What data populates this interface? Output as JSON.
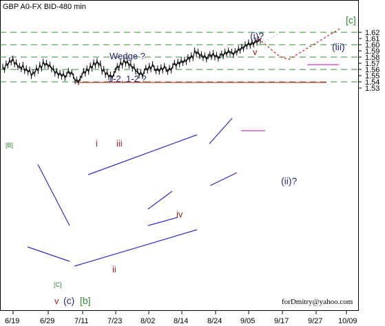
{
  "chart_data": {
    "type": "line",
    "title": "GBP A0-FX BID-480 min",
    "instrument": "GBP A0-FX",
    "timeframe": "480 min",
    "price_source": "BID",
    "x_tick_labels": [
      "6/19",
      "6/29",
      "7/11",
      "7/23",
      "8/02",
      "8/14",
      "8/24",
      "9/05",
      "9/17",
      "9/27",
      "10/09"
    ],
    "y_tick_labels": [
      "1.53",
      "1.54",
      "1.55",
      "1.56",
      "1.57",
      "1.58",
      "1.59",
      "1.60",
      "1.61",
      "1.62"
    ],
    "ylim": [
      1.53,
      1.627
    ],
    "y_axis_position": "right",
    "grid": false,
    "horizontal_levels": [
      1.54,
      1.56,
      1.58,
      1.6,
      1.62
    ],
    "support_line": 1.539,
    "series": [
      {
        "values": [
          1.565,
          1.559,
          1.57,
          1.566,
          1.575,
          1.571,
          1.578,
          1.568,
          1.572,
          1.563,
          1.566,
          1.56,
          1.568,
          1.557,
          1.562,
          1.555,
          1.56,
          1.549,
          1.556,
          1.553,
          1.563,
          1.557,
          1.568,
          1.561,
          1.573,
          1.566,
          1.571,
          1.564,
          1.568,
          1.56,
          1.562,
          1.553,
          1.558,
          1.55,
          1.555,
          1.548,
          1.554,
          1.546,
          1.552,
          1.558,
          1.552,
          1.556,
          1.549,
          1.541,
          1.544,
          1.539,
          1.546,
          1.55,
          1.558,
          1.553,
          1.562,
          1.556,
          1.567,
          1.561,
          1.572,
          1.566,
          1.574,
          1.567,
          1.57,
          1.556,
          1.561,
          1.551,
          1.556,
          1.547,
          1.552,
          1.546,
          1.553,
          1.559,
          1.566,
          1.562,
          1.572,
          1.566,
          1.576,
          1.569,
          1.574,
          1.566,
          1.569,
          1.561,
          1.565,
          1.556,
          1.558,
          1.55,
          1.556,
          1.549,
          1.557,
          1.563,
          1.558,
          1.566,
          1.56,
          1.569,
          1.562,
          1.557,
          1.562,
          1.556,
          1.564,
          1.558,
          1.566,
          1.56,
          1.556,
          1.563,
          1.558,
          1.566,
          1.571,
          1.565,
          1.573,
          1.568,
          1.575,
          1.57,
          1.576,
          1.572,
          1.58,
          1.576,
          1.583,
          1.578,
          1.591,
          1.585,
          1.589,
          1.581,
          1.585,
          1.578,
          1.583,
          1.576,
          1.581,
          1.585,
          1.58,
          1.587,
          1.579,
          1.584,
          1.577,
          1.582,
          1.586,
          1.581,
          1.589,
          1.584,
          1.591,
          1.586,
          1.589,
          1.583,
          1.59,
          1.587,
          1.594,
          1.59,
          1.597,
          1.593,
          1.601,
          1.597,
          1.604,
          1.598,
          1.605,
          1.6,
          1.607,
          1.603,
          1.609,
          1.606
        ]
      }
    ],
    "projection_red": [
      {
        "x": "9/06",
        "y": 1.61
      },
      {
        "x": "9/16",
        "y": 1.581
      },
      {
        "x": "9/19",
        "y": 1.576
      },
      {
        "x": "10/05",
        "y": 1.627
      }
    ],
    "projection_gray": [
      {
        "x": "9/07",
        "y": 1.601
      },
      {
        "x": "9/17",
        "y": 1.622
      }
    ],
    "annotations": {
      "wedge_note": "Wedge ?",
      "wave_note": "1-2, 1-2 ?",
      "label_B": "[B]",
      "label_C_small": "[C]",
      "label_i": "i",
      "label_ii": "ii",
      "label_iii": "iii",
      "label_iv": "iv",
      "label_v": "v",
      "label_wave_i": "(i)?",
      "label_wave_ii": "(ii)?",
      "label_wave_iii": "(iii)",
      "label_c_bracket": "[c]",
      "label_v_part": "v",
      "label_c_part": "(c)",
      "label_b_part": "[b]",
      "footer": "forDmitry@yahoo.com"
    },
    "colors": {
      "price": "#000000",
      "dashed_level": "#2e8b2e",
      "projection": "#dd2222",
      "projection_gray": "#bbbbbb",
      "channel": "#2b2bd0",
      "magenta": "#cc33cc",
      "support": "#cc3333"
    }
  }
}
